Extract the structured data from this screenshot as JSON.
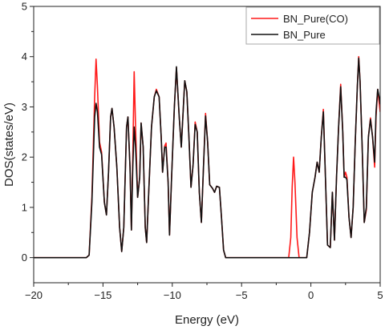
{
  "chart_data": {
    "type": "line",
    "xlabel": "Energy (eV)",
    "ylabel": "DOS(states/eV)",
    "xlim": [
      -20,
      5
    ],
    "ylim": [
      -0.5,
      5
    ],
    "xticks": [
      -20,
      -15,
      -10,
      -5,
      0,
      5
    ],
    "yticks": [
      0,
      1,
      2,
      3,
      4,
      5
    ],
    "grid": false,
    "legend_position": "top-right",
    "series": [
      {
        "name": "BN_Pure(CO)",
        "color": "#ff1a1a",
        "points": [
          [
            -20,
            0
          ],
          [
            -16.2,
            0
          ],
          [
            -16.0,
            0.05
          ],
          [
            -15.8,
            1.2
          ],
          [
            -15.6,
            3.2
          ],
          [
            -15.5,
            3.95
          ],
          [
            -15.4,
            3.4
          ],
          [
            -15.25,
            2.3
          ],
          [
            -15.1,
            2.1
          ],
          [
            -14.9,
            1.1
          ],
          [
            -14.75,
            0.85
          ],
          [
            -14.6,
            1.7
          ],
          [
            -14.45,
            2.8
          ],
          [
            -14.35,
            2.97
          ],
          [
            -14.2,
            2.6
          ],
          [
            -14.0,
            1.8
          ],
          [
            -13.8,
            0.6
          ],
          [
            -13.65,
            0.12
          ],
          [
            -13.5,
            0.6
          ],
          [
            -13.3,
            2.6
          ],
          [
            -13.2,
            2.8
          ],
          [
            -13.05,
            1.8
          ],
          [
            -12.95,
            0.55
          ],
          [
            -12.85,
            2.0
          ],
          [
            -12.75,
            3.7
          ],
          [
            -12.65,
            2.6
          ],
          [
            -12.5,
            1.2
          ],
          [
            -12.35,
            1.6
          ],
          [
            -12.25,
            2.68
          ],
          [
            -12.1,
            2.2
          ],
          [
            -11.95,
            0.6
          ],
          [
            -11.85,
            0.3
          ],
          [
            -11.7,
            1.3
          ],
          [
            -11.5,
            2.6
          ],
          [
            -11.3,
            3.2
          ],
          [
            -11.15,
            3.35
          ],
          [
            -10.95,
            3.2
          ],
          [
            -10.8,
            2.4
          ],
          [
            -10.7,
            1.7
          ],
          [
            -10.55,
            2.22
          ],
          [
            -10.45,
            2.28
          ],
          [
            -10.3,
            1.5
          ],
          [
            -10.2,
            0.45
          ],
          [
            -10.05,
            1.6
          ],
          [
            -9.85,
            3.0
          ],
          [
            -9.7,
            3.78
          ],
          [
            -9.5,
            2.8
          ],
          [
            -9.35,
            2.2
          ],
          [
            -9.2,
            3.0
          ],
          [
            -9.1,
            3.52
          ],
          [
            -8.95,
            3.3
          ],
          [
            -8.8,
            2.4
          ],
          [
            -8.65,
            1.4
          ],
          [
            -8.5,
            1.85
          ],
          [
            -8.35,
            2.7
          ],
          [
            -8.2,
            2.5
          ],
          [
            -8.05,
            1.3
          ],
          [
            -7.9,
            0.7
          ],
          [
            -7.75,
            1.8
          ],
          [
            -7.6,
            2.87
          ],
          [
            -7.45,
            2.3
          ],
          [
            -7.3,
            1.45
          ],
          [
            -7.1,
            1.38
          ],
          [
            -6.95,
            1.3
          ],
          [
            -6.8,
            1.42
          ],
          [
            -6.6,
            1.4
          ],
          [
            -6.45,
            0.8
          ],
          [
            -6.3,
            0.15
          ],
          [
            -6.15,
            0
          ],
          [
            -1.6,
            0
          ],
          [
            -1.45,
            0.4
          ],
          [
            -1.35,
            1.4
          ],
          [
            -1.25,
            2.0
          ],
          [
            -1.15,
            1.5
          ],
          [
            -1.0,
            0.4
          ],
          [
            -0.85,
            0
          ],
          [
            -0.3,
            0
          ],
          [
            -0.1,
            0.5
          ],
          [
            0.1,
            1.3
          ],
          [
            0.3,
            1.6
          ],
          [
            0.45,
            1.9
          ],
          [
            0.6,
            1.7
          ],
          [
            0.75,
            2.4
          ],
          [
            0.9,
            2.95
          ],
          [
            1.05,
            1.6
          ],
          [
            1.2,
            0.25
          ],
          [
            1.4,
            0.2
          ],
          [
            1.55,
            1.3
          ],
          [
            1.7,
            0.35
          ],
          [
            1.85,
            1.6
          ],
          [
            2.0,
            2.6
          ],
          [
            2.15,
            3.45
          ],
          [
            2.3,
            2.5
          ],
          [
            2.4,
            1.6
          ],
          [
            2.5,
            1.7
          ],
          [
            2.6,
            1.6
          ],
          [
            2.75,
            0.8
          ],
          [
            2.9,
            0.4
          ],
          [
            3.05,
            1.0
          ],
          [
            3.2,
            2.3
          ],
          [
            3.35,
            3.4
          ],
          [
            3.45,
            4.0
          ],
          [
            3.55,
            3.5
          ],
          [
            3.7,
            2.2
          ],
          [
            3.85,
            0.7
          ],
          [
            4.0,
            0.95
          ],
          [
            4.15,
            2.4
          ],
          [
            4.3,
            2.78
          ],
          [
            4.45,
            2.4
          ],
          [
            4.6,
            1.8
          ],
          [
            4.7,
            2.8
          ],
          [
            4.82,
            3.35
          ],
          [
            4.92,
            3.1
          ],
          [
            5.0,
            2.9
          ]
        ]
      },
      {
        "name": "BN_Pure",
        "color": "#111111",
        "points": [
          [
            -20,
            0
          ],
          [
            -16.2,
            0
          ],
          [
            -16.0,
            0.05
          ],
          [
            -15.8,
            1.1
          ],
          [
            -15.6,
            2.8
          ],
          [
            -15.5,
            3.07
          ],
          [
            -15.4,
            2.9
          ],
          [
            -15.25,
            2.2
          ],
          [
            -15.1,
            2.05
          ],
          [
            -14.9,
            1.1
          ],
          [
            -14.75,
            0.85
          ],
          [
            -14.6,
            1.7
          ],
          [
            -14.45,
            2.8
          ],
          [
            -14.35,
            2.97
          ],
          [
            -14.2,
            2.6
          ],
          [
            -14.0,
            1.8
          ],
          [
            -13.8,
            0.6
          ],
          [
            -13.65,
            0.12
          ],
          [
            -13.5,
            0.6
          ],
          [
            -13.3,
            2.6
          ],
          [
            -13.2,
            2.8
          ],
          [
            -13.05,
            1.8
          ],
          [
            -12.95,
            0.55
          ],
          [
            -12.85,
            1.8
          ],
          [
            -12.75,
            2.6
          ],
          [
            -12.65,
            2.2
          ],
          [
            -12.5,
            1.2
          ],
          [
            -12.35,
            1.6
          ],
          [
            -12.25,
            2.68
          ],
          [
            -12.1,
            2.2
          ],
          [
            -11.95,
            0.6
          ],
          [
            -11.85,
            0.3
          ],
          [
            -11.7,
            1.3
          ],
          [
            -11.5,
            2.6
          ],
          [
            -11.3,
            3.2
          ],
          [
            -11.15,
            3.32
          ],
          [
            -10.95,
            3.2
          ],
          [
            -10.8,
            2.4
          ],
          [
            -10.7,
            1.7
          ],
          [
            -10.55,
            2.2
          ],
          [
            -10.45,
            2.2
          ],
          [
            -10.3,
            1.5
          ],
          [
            -10.2,
            0.45
          ],
          [
            -10.05,
            1.6
          ],
          [
            -9.85,
            3.0
          ],
          [
            -9.7,
            3.8
          ],
          [
            -9.5,
            2.8
          ],
          [
            -9.35,
            2.2
          ],
          [
            -9.2,
            3.0
          ],
          [
            -9.1,
            3.52
          ],
          [
            -8.95,
            3.3
          ],
          [
            -8.8,
            2.4
          ],
          [
            -8.65,
            1.4
          ],
          [
            -8.5,
            1.85
          ],
          [
            -8.35,
            2.65
          ],
          [
            -8.2,
            2.5
          ],
          [
            -8.05,
            1.3
          ],
          [
            -7.9,
            0.7
          ],
          [
            -7.75,
            1.8
          ],
          [
            -7.6,
            2.82
          ],
          [
            -7.45,
            2.3
          ],
          [
            -7.3,
            1.45
          ],
          [
            -7.1,
            1.38
          ],
          [
            -6.95,
            1.3
          ],
          [
            -6.8,
            1.42
          ],
          [
            -6.6,
            1.4
          ],
          [
            -6.45,
            0.8
          ],
          [
            -6.3,
            0.15
          ],
          [
            -6.15,
            0
          ],
          [
            -0.3,
            0
          ],
          [
            -0.1,
            0.5
          ],
          [
            0.1,
            1.3
          ],
          [
            0.3,
            1.6
          ],
          [
            0.45,
            1.9
          ],
          [
            0.6,
            1.7
          ],
          [
            0.75,
            2.4
          ],
          [
            0.9,
            2.9
          ],
          [
            1.05,
            1.6
          ],
          [
            1.2,
            0.25
          ],
          [
            1.4,
            0.2
          ],
          [
            1.55,
            1.3
          ],
          [
            1.7,
            0.35
          ],
          [
            1.85,
            1.6
          ],
          [
            2.0,
            2.6
          ],
          [
            2.15,
            3.4
          ],
          [
            2.3,
            2.5
          ],
          [
            2.4,
            1.6
          ],
          [
            2.5,
            1.6
          ],
          [
            2.6,
            1.55
          ],
          [
            2.75,
            0.8
          ],
          [
            2.9,
            0.4
          ],
          [
            3.05,
            1.0
          ],
          [
            3.2,
            2.3
          ],
          [
            3.35,
            3.4
          ],
          [
            3.45,
            3.97
          ],
          [
            3.55,
            3.5
          ],
          [
            3.7,
            2.2
          ],
          [
            3.85,
            0.7
          ],
          [
            4.0,
            1.0
          ],
          [
            4.15,
            2.4
          ],
          [
            4.3,
            2.75
          ],
          [
            4.45,
            2.4
          ],
          [
            4.6,
            1.9
          ],
          [
            4.7,
            2.9
          ],
          [
            4.82,
            3.35
          ],
          [
            4.92,
            3.2
          ],
          [
            5.0,
            3.05
          ]
        ]
      }
    ]
  }
}
